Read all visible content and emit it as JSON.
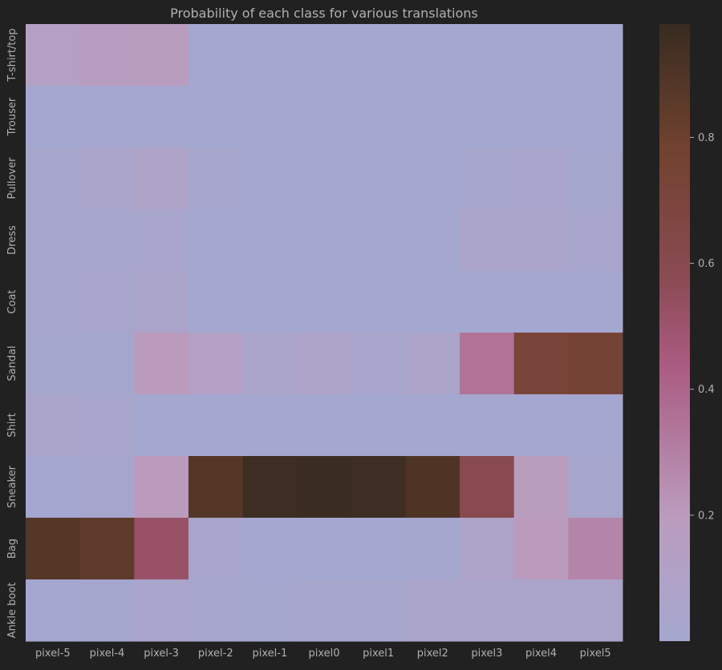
{
  "chart_data": {
    "type": "heatmap",
    "title": "Probability of each class for various translations",
    "x_categories": [
      "pixel-5",
      "pixel-4",
      "pixel-3",
      "pixel-2",
      "pixel-1",
      "pixel0",
      "pixel1",
      "pixel2",
      "pixel3",
      "pixel4",
      "pixel5"
    ],
    "y_categories": [
      "T-shirt/top",
      "Trouser",
      "Pullover",
      "Dress",
      "Coat",
      "Sandal",
      "Shirt",
      "Sneaker",
      "Bag",
      "Ankle boot"
    ],
    "values": [
      [
        0.13,
        0.16,
        0.18,
        0.0,
        0.0,
        0.0,
        0.0,
        0.0,
        0.0,
        0.0,
        0.0
      ],
      [
        0.0,
        0.0,
        0.0,
        0.0,
        0.0,
        0.0,
        0.0,
        0.0,
        0.0,
        0.0,
        0.0
      ],
      [
        0.02,
        0.05,
        0.09,
        0.02,
        0.0,
        0.0,
        0.0,
        0.0,
        0.02,
        0.04,
        0.01
      ],
      [
        0.02,
        0.02,
        0.03,
        0.0,
        0.0,
        0.0,
        0.0,
        0.0,
        0.06,
        0.06,
        0.03
      ],
      [
        0.02,
        0.03,
        0.05,
        0.0,
        0.0,
        0.0,
        0.0,
        0.0,
        0.0,
        0.0,
        0.0
      ],
      [
        0.01,
        0.01,
        0.2,
        0.13,
        0.06,
        0.08,
        0.04,
        0.07,
        0.35,
        0.72,
        0.75
      ],
      [
        0.05,
        0.03,
        0.0,
        0.0,
        0.0,
        0.0,
        0.0,
        0.0,
        0.0,
        0.0,
        0.0
      ],
      [
        0.0,
        0.02,
        0.2,
        0.88,
        0.96,
        0.97,
        0.96,
        0.9,
        0.6,
        0.18,
        0.02
      ],
      [
        0.88,
        0.85,
        0.52,
        0.03,
        0.0,
        0.0,
        0.0,
        0.01,
        0.08,
        0.2,
        0.28
      ],
      [
        0.0,
        0.01,
        0.04,
        0.02,
        0.01,
        0.02,
        0.02,
        0.05,
        0.05,
        0.05,
        0.05
      ]
    ],
    "colorbar": {
      "ticks": [
        0.2,
        0.4,
        0.6,
        0.8
      ],
      "range": [
        0.0,
        0.98
      ]
    }
  }
}
